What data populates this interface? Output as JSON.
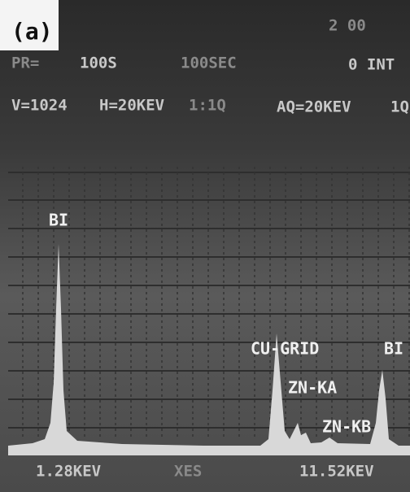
{
  "panel_label": "(a)",
  "header": {
    "corner": "2 00",
    "line1": [
      "PR=",
      "100S",
      "100SEC",
      "0 INT"
    ],
    "line2": [
      "V=1024",
      "H=20KEV",
      "1:1Q",
      "AQ=20KEV",
      "1Q"
    ]
  },
  "peaks": [
    "BI",
    "CU-GRID",
    "ZN-KA",
    "ZN-KB",
    "BI"
  ],
  "footer": [
    "1.28KEV",
    "XES",
    "11.52KEV"
  ]
}
